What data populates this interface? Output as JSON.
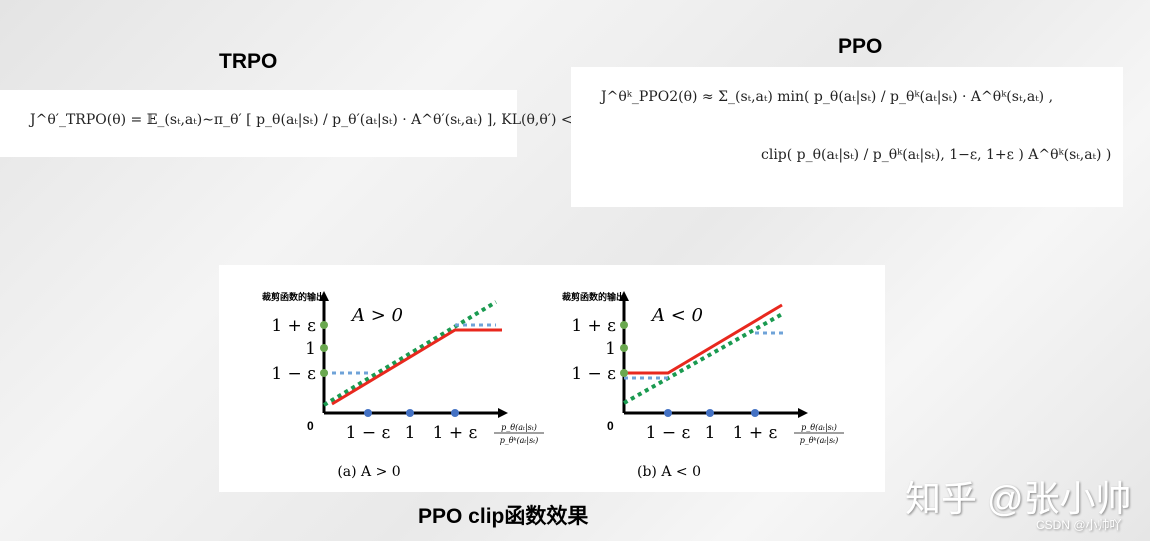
{
  "trpo": {
    "title": "TRPO",
    "formula": "J^θ′_TRPO(θ) = 𝔼_(sₜ,aₜ)∼π_θ′ [ p_θ(aₜ|sₜ) / p_θ′(aₜ|sₜ) · A^θ′(sₜ,aₜ) ], KL(θ,θ′) < δ"
  },
  "ppo": {
    "title": "PPO",
    "formula_line1": "J^θᵏ_PPO2(θ) ≈ Σ_(sₜ,aₜ) min( p_θ(aₜ|sₜ) / p_θᵏ(aₜ|sₜ) · A^θᵏ(sₜ,aₜ) ,",
    "formula_line2": "clip( p_θ(aₜ|sₜ) / p_θᵏ(aₜ|sₜ), 1−ε, 1+ε ) A^θᵏ(sₜ,aₜ) )"
  },
  "figure": {
    "y_axis_label": "裁剪函数的输出",
    "origin_label": "0",
    "x_ticks": [
      "1 − ε",
      "1",
      "1 + ε"
    ],
    "y_ticks": [
      "1 + ε",
      "1",
      "1 − ε"
    ],
    "x_axis_label_num": "p_θ(aₜ|sₜ)",
    "x_axis_label_den": "p_θᵏ(aₜ|sₜ)",
    "panels": [
      {
        "annotation": "A > 0",
        "caption": "(a) A > 0"
      },
      {
        "annotation": "A < 0",
        "caption": "(b) A < 0"
      }
    ],
    "colors": {
      "clip": "#e8281e",
      "ratio": "#1a9a50",
      "bound": "#6fa3d8",
      "ytick_dot": "#6aa84f",
      "xtick_dot": "#4472c4"
    }
  },
  "caption": "PPO  clip函数效果",
  "watermark": {
    "main": "知乎 @张小帅",
    "sub": "CSDN @小帅吖"
  }
}
